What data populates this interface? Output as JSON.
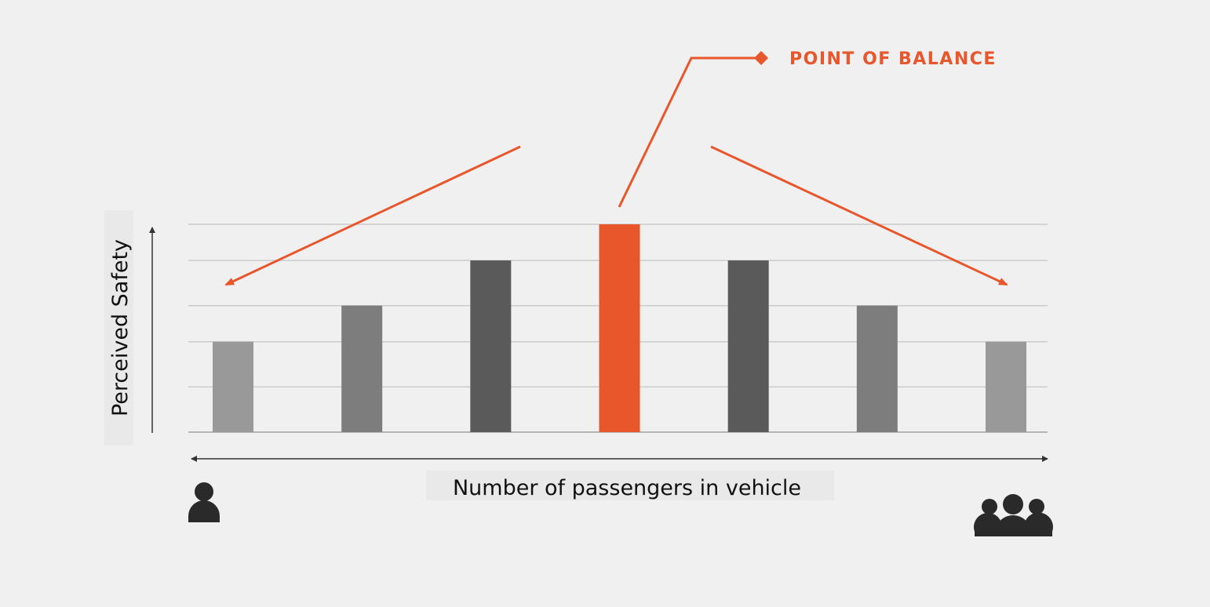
{
  "chart_data": {
    "type": "bar",
    "xlabel": "Number of passengers in vehicle",
    "ylabel": "Perceived Safety",
    "ylim": [
      0,
      4.6
    ],
    "grid": true,
    "categories": [
      "",
      "",
      "",
      "",
      "",
      "",
      ""
    ],
    "values": [
      2,
      2.8,
      3.8,
      4.6,
      3.8,
      2.8,
      2
    ],
    "bar_colors": [
      "#999999",
      "#7d7d7d",
      "#5a5a5a",
      "#e8562c",
      "#5a5a5a",
      "#7d7d7d",
      "#999999"
    ],
    "annotation": {
      "text": "POINT OF BALANCE",
      "color": "#e8562c",
      "highlight_index": 3
    },
    "icons": {
      "left": "single-person-icon",
      "right": "group-of-people-icon"
    }
  }
}
